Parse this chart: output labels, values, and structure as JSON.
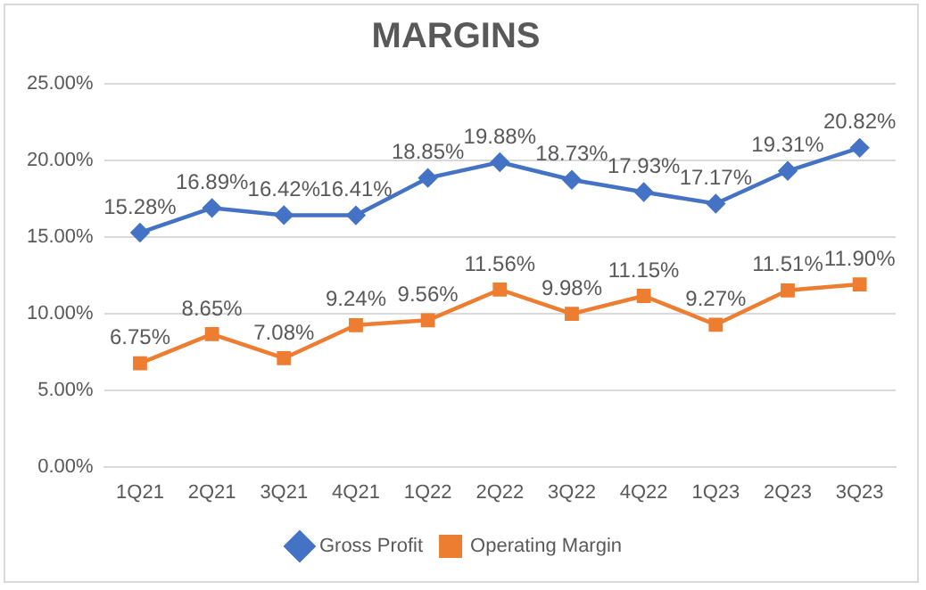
{
  "chart_data": {
    "type": "line",
    "title": "MARGINS",
    "categories": [
      "1Q21",
      "2Q21",
      "3Q21",
      "4Q21",
      "1Q22",
      "2Q22",
      "3Q22",
      "4Q22",
      "1Q23",
      "2Q23",
      "3Q23"
    ],
    "series": [
      {
        "name": "Gross Profit",
        "color": "#4472c4",
        "marker": "diamond",
        "values": [
          15.28,
          16.89,
          16.42,
          16.41,
          18.85,
          19.88,
          18.73,
          17.93,
          17.17,
          19.31,
          20.82
        ],
        "value_labels": [
          "15.28%",
          "16.89%",
          "16.42%",
          "16.41%",
          "18.85%",
          "19.88%",
          "18.73%",
          "17.93%",
          "17.17%",
          "19.31%",
          "20.82%"
        ]
      },
      {
        "name": "Operating Margin",
        "color": "#ed7d31",
        "marker": "square",
        "values": [
          6.75,
          8.65,
          7.08,
          9.24,
          9.56,
          11.56,
          9.98,
          11.15,
          9.27,
          11.51,
          11.9
        ],
        "value_labels": [
          "6.75%",
          "8.65%",
          "7.08%",
          "9.24%",
          "9.56%",
          "11.56%",
          "9.98%",
          "11.15%",
          "9.27%",
          "11.51%",
          "11.90%"
        ]
      }
    ],
    "ylim": [
      0,
      25
    ],
    "yticks": [
      {
        "value": 0,
        "label": "0.00%"
      },
      {
        "value": 5,
        "label": "5.00%"
      },
      {
        "value": 10,
        "label": "10.00%"
      },
      {
        "value": 15,
        "label": "15.00%"
      },
      {
        "value": 20,
        "label": "20.00%"
      },
      {
        "value": 25,
        "label": "25.00%"
      }
    ],
    "grid": "y",
    "legend": "bottom",
    "line_style": "solid"
  }
}
